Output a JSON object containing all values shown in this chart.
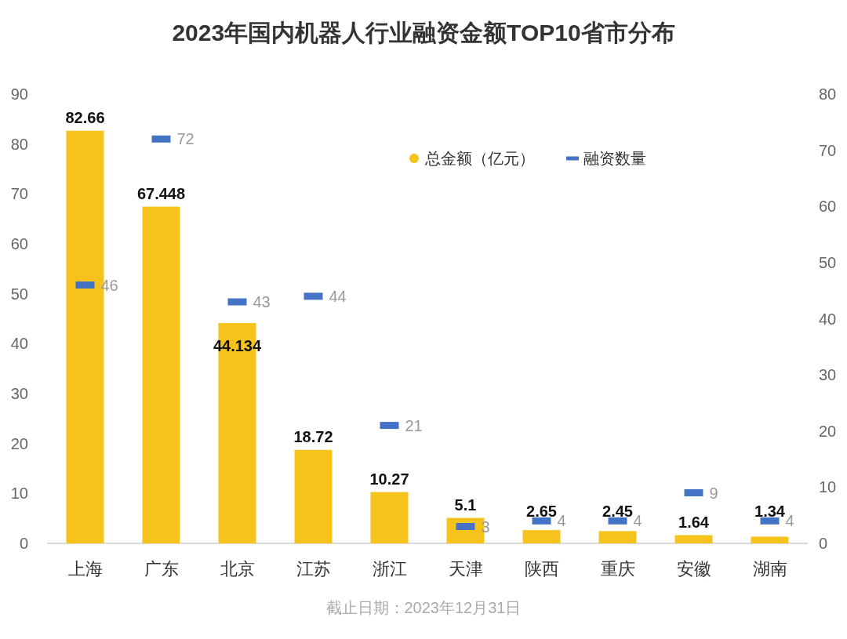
{
  "chart_data": {
    "type": "bar",
    "title": "2023年国内机器人行业融资金额TOP10省市分布",
    "categories": [
      "上海",
      "广东",
      "北京",
      "江苏",
      "浙江",
      "天津",
      "陕西",
      "重庆",
      "安徽",
      "湖南"
    ],
    "series": [
      {
        "name": "总金额（亿元）",
        "type": "bar",
        "color": "#f5c31c",
        "values": [
          82.66,
          67.448,
          44.134,
          18.72,
          10.27,
          5.1,
          2.65,
          2.45,
          1.64,
          1.34
        ]
      },
      {
        "name": "融资数量",
        "type": "scatter",
        "axis": "y2",
        "color": "#4472c4",
        "values": [
          46,
          72,
          43,
          44,
          21,
          3,
          4,
          4,
          9,
          4
        ]
      }
    ],
    "ylim": [
      0,
      90
    ],
    "yticks": [
      0,
      10,
      20,
      30,
      40,
      50,
      60,
      70,
      80,
      90
    ],
    "y2lim": [
      0,
      80
    ],
    "y2ticks": [
      0,
      10,
      20,
      30,
      40,
      50,
      60,
      70,
      80
    ],
    "data_labels": true,
    "legend": "top right",
    "grid": false,
    "annotations": [
      "截止日期：2023年12月31日"
    ]
  }
}
